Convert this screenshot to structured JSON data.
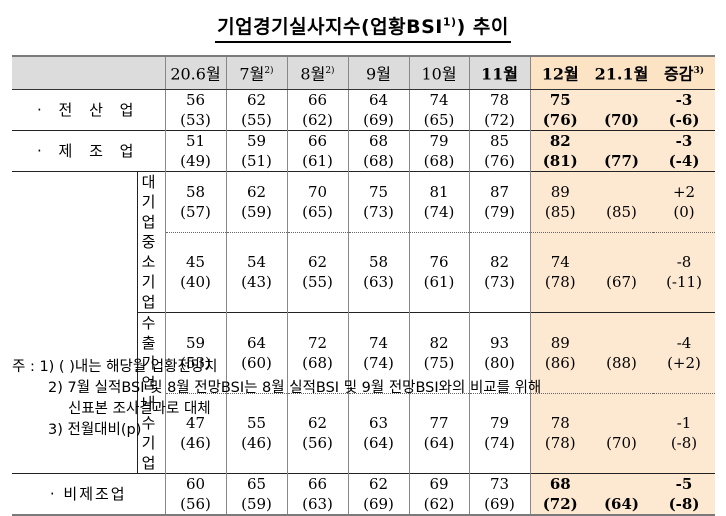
{
  "title": {
    "text": "기업경기실사지수(업황BSI",
    "sup": "1)",
    "suffix": ") 추이"
  },
  "columns": [
    {
      "label": "20.6월",
      "sup": ""
    },
    {
      "label": "7월",
      "sup": "2)"
    },
    {
      "label": "8월",
      "sup": "2)"
    },
    {
      "label": "9월",
      "sup": ""
    },
    {
      "label": "10월",
      "sup": ""
    },
    {
      "label": "11월",
      "sup": ""
    },
    {
      "label": "12월",
      "sup": ""
    },
    {
      "label": "21.1월",
      "sup": ""
    },
    {
      "label": "증감",
      "sup": "3)"
    }
  ],
  "rows": [
    {
      "label": "· 전 산 업",
      "actual": [
        "56",
        "62",
        "66",
        "64",
        "74",
        "78",
        "75",
        "",
        "-3"
      ],
      "forecast": [
        "(53)",
        "(55)",
        "(62)",
        "(69)",
        "(65)",
        "(72)",
        "(76)",
        "(70)",
        "(-6)"
      ]
    },
    {
      "label": "· 제 조 업",
      "actual": [
        "51",
        "59",
        "66",
        "68",
        "79",
        "85",
        "82",
        "",
        "-3"
      ],
      "forecast": [
        "(49)",
        "(51)",
        "(61)",
        "(68)",
        "(68)",
        "(76)",
        "(81)",
        "(77)",
        "(-4)"
      ]
    },
    {
      "label": "대 기 업",
      "actual": [
        "58",
        "62",
        "70",
        "75",
        "81",
        "87",
        "89",
        "",
        "+2"
      ],
      "forecast": [
        "(57)",
        "(59)",
        "(65)",
        "(73)",
        "(74)",
        "(79)",
        "(85)",
        "(85)",
        "(0)"
      ]
    },
    {
      "label": "중소기업",
      "actual": [
        "45",
        "54",
        "62",
        "58",
        "76",
        "82",
        "74",
        "",
        "-8"
      ],
      "forecast": [
        "(40)",
        "(43)",
        "(55)",
        "(63)",
        "(61)",
        "(73)",
        "(78)",
        "(67)",
        "(-11)"
      ]
    },
    {
      "label": "수출기업",
      "actual": [
        "59",
        "64",
        "72",
        "74",
        "82",
        "93",
        "89",
        "",
        "-4"
      ],
      "forecast": [
        "(53)",
        "(60)",
        "(68)",
        "(74)",
        "(75)",
        "(80)",
        "(86)",
        "(88)",
        "(+2)"
      ]
    },
    {
      "label": "내수기업",
      "actual": [
        "47",
        "55",
        "62",
        "63",
        "77",
        "79",
        "78",
        "",
        "-1"
      ],
      "forecast": [
        "(46)",
        "(46)",
        "(56)",
        "(64)",
        "(64)",
        "(74)",
        "(78)",
        "(70)",
        "(-8)"
      ]
    },
    {
      "label": "· 비제조업",
      "actual": [
        "60",
        "65",
        "66",
        "62",
        "69",
        "73",
        "68",
        "",
        "-5"
      ],
      "forecast": [
        "(56)",
        "(59)",
        "(63)",
        "(69)",
        "(62)",
        "(69)",
        "(72)",
        "(64)",
        "(-8)"
      ]
    }
  ],
  "notes": [
    "주 : 1) (  )내는 해당월 업황전망치",
    "2) 7월 실적BSI 및 8월 전망BSI는 8월 실적BSI 및 9월 전망BSI와의 비교를 위해",
    "신표본 조사결과로 대체",
    "3) 전월대비(p)"
  ]
}
